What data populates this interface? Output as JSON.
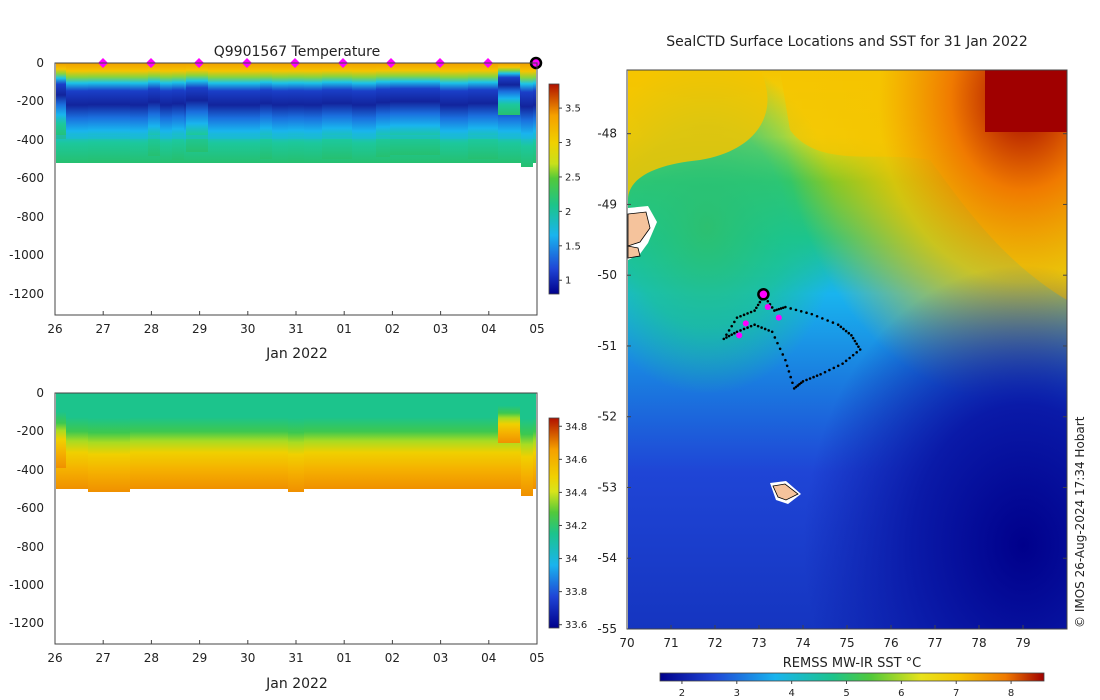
{
  "chart_data": [
    {
      "type": "heatmap",
      "title": "Q9901567  Temperature",
      "xlabel": "Jan 2022",
      "ylabel": "",
      "x_tick_labels": [
        "26",
        "27",
        "28",
        "29",
        "30",
        "31",
        "01",
        "02",
        "03",
        "04",
        "05"
      ],
      "y_ticks": [
        0,
        -200,
        -400,
        -600,
        -800,
        -1000,
        -1200
      ],
      "ylim": [
        -1310,
        0
      ],
      "colorbar": {
        "range": [
          0.8,
          3.85
        ],
        "ticks": [
          "1",
          "1.5",
          "2",
          "2.5",
          "3",
          "3.5"
        ]
      },
      "surfacing_markers_days": [
        1,
        2,
        3,
        4,
        5,
        6,
        7,
        8,
        9
      ],
      "current_position_day": 10
    },
    {
      "type": "heatmap",
      "title": "",
      "xlabel": "Jan 2022",
      "ylabel": "",
      "x_tick_labels": [
        "26",
        "27",
        "28",
        "29",
        "30",
        "31",
        "01",
        "02",
        "03",
        "04",
        "05"
      ],
      "y_ticks": [
        0,
        -200,
        -400,
        -600,
        -800,
        -1000,
        -1200
      ],
      "ylim": [
        -1310,
        0
      ],
      "colorbar": {
        "range": [
          33.58,
          34.85
        ],
        "ticks": [
          "33.6",
          "33.8",
          "34",
          "34.2",
          "34.4",
          "34.6",
          "34.8"
        ]
      }
    },
    {
      "type": "heatmap",
      "title": "SealCTD Surface Locations and SST for 31 Jan 2022",
      "xlabel": "",
      "ylabel": "",
      "x_ticks": [
        "70",
        "71",
        "72",
        "73",
        "74",
        "75",
        "76",
        "77",
        "78",
        "79"
      ],
      "y_ticks": [
        "-48",
        "-49",
        "-50",
        "-51",
        "-52",
        "-53",
        "-54",
        "-55"
      ],
      "xlim": [
        70,
        80
      ],
      "ylim": [
        -55,
        -47.1
      ],
      "colorbar": {
        "label": "REMSS MW-IR SST °C",
        "range": [
          1.6,
          8.6
        ],
        "ticks": [
          "2",
          "3",
          "4",
          "5",
          "6",
          "7",
          "8"
        ]
      },
      "track": [
        [
          73.1,
          -50.28
        ],
        [
          73.35,
          -50.5
        ],
        [
          73.6,
          -50.45
        ],
        [
          74.2,
          -50.55
        ],
        [
          74.8,
          -50.7
        ],
        [
          75.1,
          -50.85
        ],
        [
          75.3,
          -51.05
        ],
        [
          74.9,
          -51.25
        ],
        [
          74.4,
          -51.4
        ],
        [
          74.0,
          -51.5
        ],
        [
          73.8,
          -51.6
        ],
        [
          73.6,
          -51.2
        ],
        [
          73.3,
          -50.8
        ],
        [
          72.9,
          -50.7
        ],
        [
          72.5,
          -50.8
        ],
        [
          72.2,
          -50.9
        ],
        [
          72.5,
          -50.6
        ],
        [
          72.9,
          -50.5
        ],
        [
          73.1,
          -50.3
        ]
      ],
      "current_position": [
        73.1,
        -50.27
      ],
      "recent_positions": [
        [
          72.55,
          -50.85
        ],
        [
          73.2,
          -50.45
        ],
        [
          73.45,
          -50.6
        ],
        [
          72.7,
          -50.68
        ]
      ]
    }
  ],
  "credit": "© IMOS 26-Aug-2024 17:34 Hobart"
}
